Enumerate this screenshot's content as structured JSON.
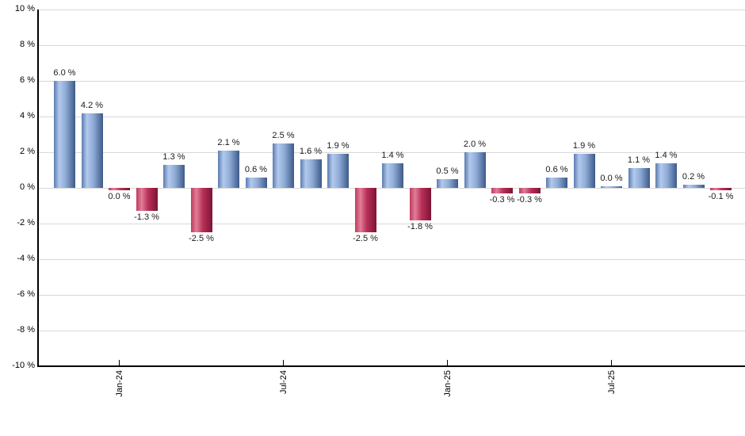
{
  "chart_data": {
    "type": "bar",
    "title": "",
    "xlabel": "",
    "ylabel": "",
    "ylim": [
      -10,
      10
    ],
    "y_tick_step": 2,
    "grid": true,
    "legend": "none",
    "y_tick_labels": [
      "10 %",
      "8 %",
      "6 %",
      "4 %",
      "2 %",
      "0 %",
      "-2 %",
      "-4 %",
      "-6 %",
      "-8 %",
      "-10 %"
    ],
    "x_tick_labels": [
      {
        "bar_index": 2,
        "label": "Jan-24"
      },
      {
        "bar_index": 8,
        "label": "Jul-24"
      },
      {
        "bar_index": 14,
        "label": "Jan-25"
      },
      {
        "bar_index": 20,
        "label": "Jul-25"
      }
    ],
    "bars": [
      {
        "value": 6.0,
        "label": "6.0 %",
        "color": "blue"
      },
      {
        "value": 4.2,
        "label": "4.2 %",
        "color": "blue"
      },
      {
        "value": 0.0,
        "label": "0.0 %",
        "color": "red"
      },
      {
        "value": -1.3,
        "label": "-1.3 %",
        "color": "red"
      },
      {
        "value": 1.3,
        "label": "1.3 %",
        "color": "blue"
      },
      {
        "value": -2.5,
        "label": "-2.5 %",
        "color": "red"
      },
      {
        "value": 2.1,
        "label": "2.1 %",
        "color": "blue"
      },
      {
        "value": 0.6,
        "label": "0.6 %",
        "color": "blue"
      },
      {
        "value": 2.5,
        "label": "2.5 %",
        "color": "blue"
      },
      {
        "value": 1.6,
        "label": "1.6 %",
        "color": "blue"
      },
      {
        "value": 1.9,
        "label": "1.9 %",
        "color": "blue"
      },
      {
        "value": -2.5,
        "label": "-2.5 %",
        "color": "red"
      },
      {
        "value": 1.4,
        "label": "1.4 %",
        "color": "blue"
      },
      {
        "value": -1.8,
        "label": "-1.8 %",
        "color": "red"
      },
      {
        "value": 0.5,
        "label": "0.5 %",
        "color": "blue"
      },
      {
        "value": 2.0,
        "label": "2.0 %",
        "color": "blue"
      },
      {
        "value": -0.3,
        "label": "-0.3 %",
        "color": "red"
      },
      {
        "value": -0.3,
        "label": "-0.3 %",
        "color": "red"
      },
      {
        "value": 0.6,
        "label": "0.6 %",
        "color": "blue"
      },
      {
        "value": 1.9,
        "label": "1.9 %",
        "color": "blue"
      },
      {
        "value": 0.0,
        "label": "0.0 %",
        "color": "blue"
      },
      {
        "value": 1.1,
        "label": "1.1 %",
        "color": "blue"
      },
      {
        "value": 1.4,
        "label": "1.4 %",
        "color": "blue"
      },
      {
        "value": 0.2,
        "label": "0.2 %",
        "color": "blue"
      },
      {
        "value": -0.1,
        "label": "-0.1 %",
        "color": "red"
      }
    ],
    "colors": {
      "positive_gradient": [
        "#5b7cb1",
        "#b2c9ec",
        "#8fabd6",
        "#3d5a89"
      ],
      "negative_gradient": [
        "#c13a5d",
        "#e07e98",
        "#b93058",
        "#7e1336"
      ],
      "grid": "#d8d8d8",
      "axis": "#000000",
      "label_text": "#1a1a1a"
    }
  }
}
